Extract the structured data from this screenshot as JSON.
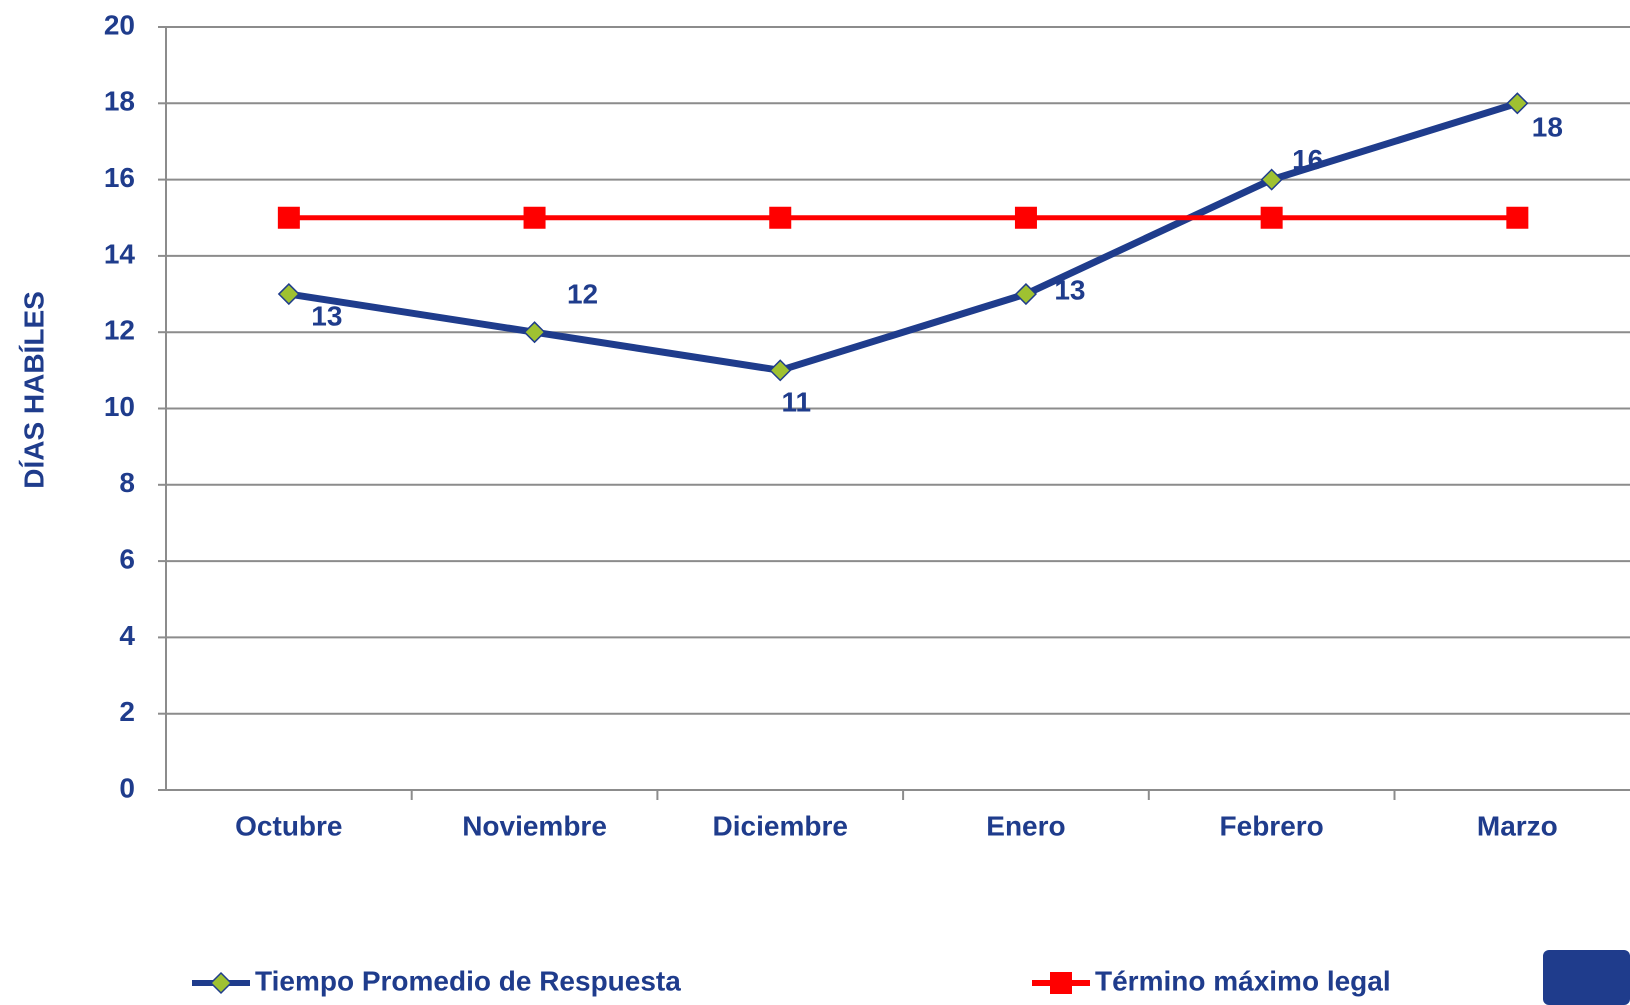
{
  "chart_data": {
    "type": "line",
    "y_label": "DÍAS HABÍLES",
    "categories": [
      "Octubre",
      "Noviembre",
      "Diciembre",
      "Enero",
      "Febrero",
      "Marzo"
    ],
    "series": [
      {
        "name": "Tiempo Promedio de Respuesta",
        "color": "#1f3c8c",
        "marker": "diamond",
        "marker_color": "#9fc131",
        "values": [
          13,
          12,
          11,
          13,
          16,
          18
        ],
        "data_labels": true
      },
      {
        "name": "Término máximo legal",
        "color": "#ff0000",
        "marker": "square",
        "marker_color": "#ff0000",
        "values": [
          15,
          15,
          15,
          15,
          15,
          15
        ],
        "data_labels": false
      }
    ],
    "ylim": [
      0,
      20
    ],
    "yticks": [
      0,
      2,
      4,
      6,
      8,
      10,
      12,
      14,
      16,
      18,
      20
    ],
    "grid": true,
    "legend": "bottom"
  }
}
